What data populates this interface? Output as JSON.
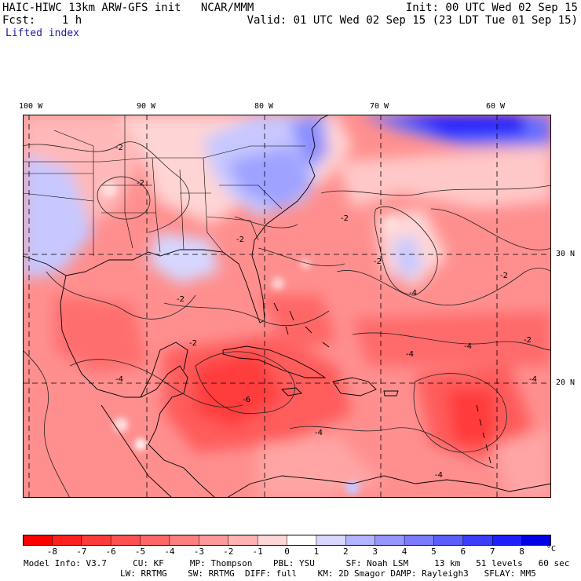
{
  "header": {
    "left_line1": "HAIC-HIWC 13km ARW-GFS init   NCAR/MMM",
    "left_line2": "Fcst:    1 h",
    "right_line1": "Init: 00 UTC Wed 02 Sep 15",
    "right_line2": "Valid: 01 UTC Wed 02 Sep 15 (23 LDT Tue 01 Sep 15)",
    "field": "Lifted index"
  },
  "map": {
    "lon_labels": [
      "100 W",
      "90 W",
      "80 W",
      "70 W",
      "60 W"
    ],
    "lat_labels": [
      "30 N",
      "20 N"
    ],
    "contour_labels": [
      "-2",
      "-4",
      "-6"
    ],
    "colors": {
      "warm_strong": "#ff2a2a",
      "warm_mid": "#ff6a6a",
      "warm_light": "#ffb5b5",
      "neutral": "#ffffff",
      "cool_light": "#c5c8ff",
      "cool_mid": "#7a80ff",
      "cool_strong": "#1a1aff"
    }
  },
  "colorbar": {
    "ticks": [
      "-8",
      "-7",
      "-6",
      "-5",
      "-4",
      "-3",
      "-2",
      "-1",
      "0",
      "1",
      "2",
      "3",
      "4",
      "5",
      "6",
      "7",
      "8"
    ],
    "unit": "°C",
    "colors": [
      "#ff0000",
      "#ff2020",
      "#ff3a3a",
      "#ff5050",
      "#ff6666",
      "#ff7e7e",
      "#ff9898",
      "#ffb3b3",
      "#ffd6d6",
      "#ffffff",
      "#d8d8ff",
      "#b3b4ff",
      "#9596ff",
      "#7a7bff",
      "#5c5dff",
      "#3c3dff",
      "#1e1fff",
      "#0000e6"
    ]
  },
  "footer": {
    "line1": "Model Info: V3.7     CU: KF     MP: Thompson    PBL: YSU      SF: Noah LSM     13 km   51 levels   60 sec",
    "line2": "LW: RRTMG    SW: RRTMG  DIFF: full    KM: 2D Smagor DAMP: Rayleigh3   SFLAY: MM5"
  }
}
